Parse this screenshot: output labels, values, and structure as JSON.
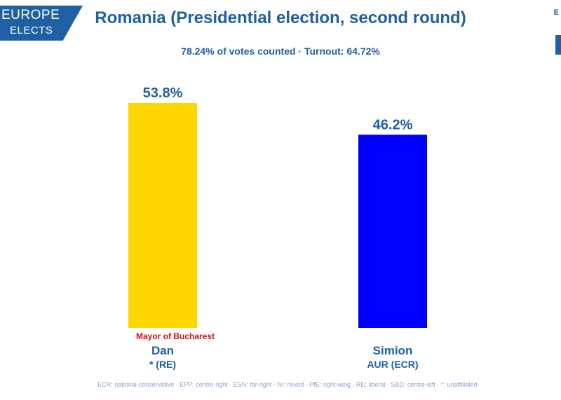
{
  "logo": {
    "line1": "EUROPE",
    "line2": "ELECTS"
  },
  "corner_text": "E",
  "title": "Romania (Presidential election, second round)",
  "subtitle": "78.24% of votes counted · Turnout: 64.72%",
  "candidates": [
    {
      "name": "Dan",
      "party": "* (RE)",
      "note": "Mayor of Bucharest",
      "label": "53.8%"
    },
    {
      "name": "Simion",
      "party": "AUR (ECR)",
      "label": "46.2%"
    }
  ],
  "footer": "ECR: national-conservative · EPP: centre-right · ESN: far-right · NI: mixed · PfE: right-wing · RE: liberal · S&D: centre-left · *: unaffiliated",
  "chart_data": {
    "type": "bar",
    "title": "Romania (Presidential election, second round)",
    "subtitle": "78.24% of votes counted · Turnout: 64.72%",
    "categories": [
      "Dan",
      "Simion"
    ],
    "values": [
      53.8,
      46.2
    ],
    "data_labels": [
      "53.8%",
      "46.2%"
    ],
    "colors": [
      "#ffd700",
      "#0000ff"
    ],
    "label_color": "#1f5fa3",
    "ylim": [
      0,
      53.8
    ],
    "grid": false,
    "legend": "none"
  }
}
